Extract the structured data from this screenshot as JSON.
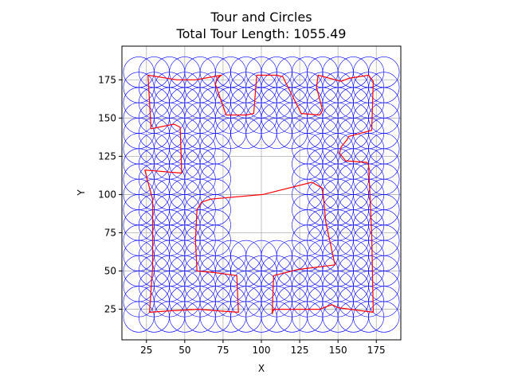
{
  "chart_data": {
    "type": "scatter",
    "title": "Tour and Circles",
    "subtitle": "Total Tour Length: 1055.49",
    "xlabel": "X",
    "ylabel": "Y",
    "xlim": [
      9,
      191
    ],
    "ylim": [
      5,
      197
    ],
    "xticks": [
      25,
      50,
      75,
      100,
      125,
      150,
      175
    ],
    "yticks": [
      25,
      50,
      75,
      100,
      125,
      150,
      175
    ],
    "grid": true,
    "colors": {
      "circles": "#0000ff",
      "tour": "#ff0000",
      "grid": "#b0b0b0",
      "axes": "#000000"
    },
    "circles": {
      "radius": 10,
      "centers_x": [
        20,
        30,
        40,
        50,
        60,
        70,
        80,
        90,
        100,
        110,
        120,
        130,
        140,
        150,
        160,
        170,
        180
      ],
      "centers_y": [
        20,
        30,
        40,
        50,
        60,
        70,
        80,
        90,
        100,
        110,
        120,
        130,
        140,
        150,
        160,
        170,
        180
      ],
      "hole_x_range": [
        80,
        120
      ],
      "hole_y_range": [
        70,
        130
      ]
    },
    "series": [
      {
        "type": "line",
        "x": [
          26,
          45,
          57,
          74,
          71,
          70,
          77,
          90,
          95,
          97,
          110,
          114,
          126,
          138,
          140,
          136,
          137,
          152,
          157,
          170,
          173,
          172,
          157,
          156,
          152,
          151,
          155,
          169,
          170,
          172,
          173,
          158,
          150,
          146,
          138,
          135,
          108,
          107,
          108,
          124,
          140,
          148,
          142,
          140,
          133,
          101,
          67,
          61,
          58,
          57,
          58,
          69,
          84,
          85,
          71,
          59,
          41,
          27,
          29,
          29,
          26,
          24,
          48,
          47,
          43,
          28,
          27,
          26
        ],
        "y": [
          178,
          175,
          175,
          178,
          176,
          172,
          152,
          152,
          153,
          178,
          178,
          177,
          153,
          152,
          155,
          170,
          178,
          174,
          176,
          178,
          174,
          142,
          138,
          136,
          131,
          127,
          122,
          121,
          119,
          73,
          23,
          25,
          26,
          28,
          25,
          25,
          25,
          22,
          47,
          51,
          53,
          54,
          82,
          104,
          108,
          100,
          97,
          95,
          90,
          70,
          50,
          49,
          47,
          23,
          24,
          25,
          24,
          23,
          52,
          97,
          108,
          116,
          114,
          144,
          146,
          143,
          161,
          178
        ]
      }
    ]
  }
}
